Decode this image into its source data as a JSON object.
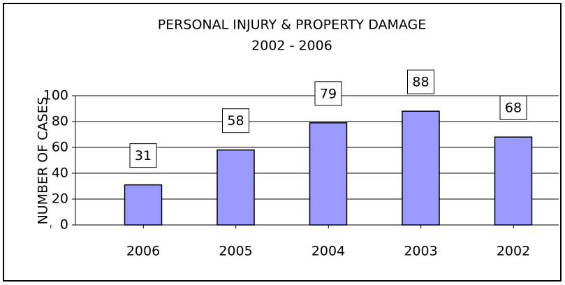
{
  "chart_data": {
    "type": "bar",
    "title": "PERSONAL INJURY & PROPERTY DAMAGE",
    "subtitle": "2002 - 2006",
    "y_label": "NUMBER OF CASES",
    "categories": [
      "2006",
      "2005",
      "2004",
      "2003",
      "2002"
    ],
    "values": [
      31,
      58,
      79,
      88,
      68
    ],
    "color": "#9999ff",
    "ylim": [
      0,
      100
    ],
    "yticks": [
      0,
      20,
      40,
      60,
      80,
      100
    ],
    "grid": true
  }
}
